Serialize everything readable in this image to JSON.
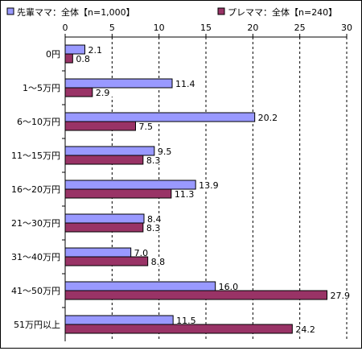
{
  "chart_data": {
    "type": "bar",
    "orientation": "horizontal",
    "categories": [
      "0円",
      "1～5万円",
      "6～10万円",
      "11～15万円",
      "16～20万円",
      "21～30万円",
      "31～40万円",
      "41～50万円",
      "51万円以上"
    ],
    "series": [
      {
        "name": "先輩ママ：全体【n=1,000】",
        "color": "#9999FF",
        "values": [
          2.1,
          11.4,
          20.2,
          9.5,
          13.9,
          8.4,
          7.0,
          16.0,
          11.5
        ]
      },
      {
        "name": "プレママ：全体【n=240】",
        "color": "#993366",
        "values": [
          0.8,
          2.9,
          7.5,
          8.3,
          11.3,
          8.3,
          8.8,
          27.9,
          24.2
        ]
      }
    ],
    "xlim": [
      0,
      30
    ],
    "xticks": [
      "0",
      "5",
      "10",
      "15",
      "20",
      "25",
      "30"
    ],
    "value_labels": [
      [
        "2.1",
        "11.4",
        "20.2",
        "9.5",
        "13.9",
        "8.4",
        "7.0",
        "16.0",
        "11.5"
      ],
      [
        "0.8",
        "2.9",
        "7.5",
        "8.3",
        "11.3",
        "8.3",
        "8.8",
        "27.9",
        "24.2"
      ]
    ],
    "grid": "vertical-dashed",
    "legend_position": "top"
  }
}
